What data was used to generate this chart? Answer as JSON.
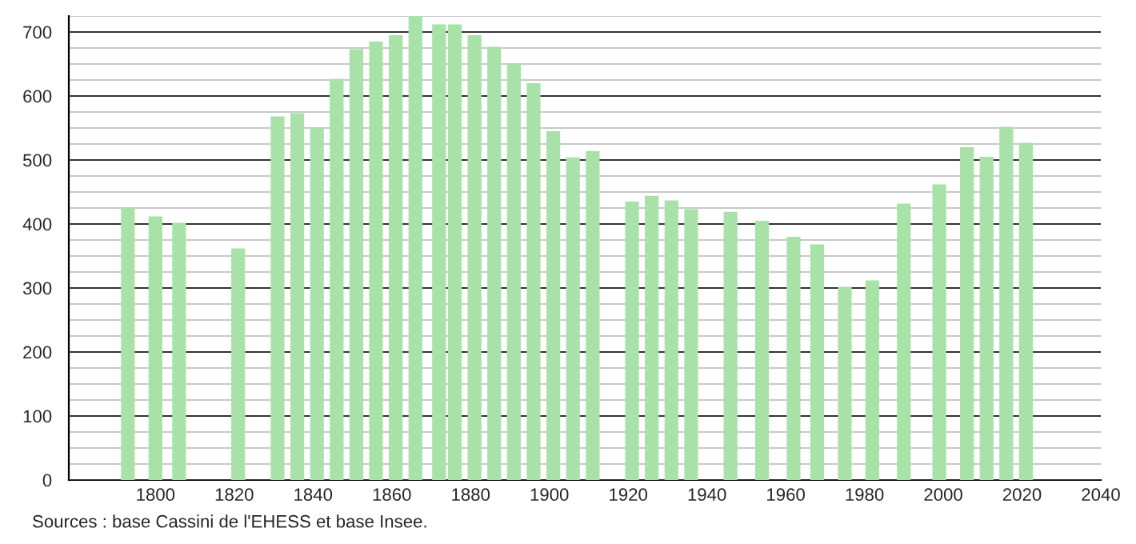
{
  "chart_data": {
    "type": "bar",
    "color": "#a8e2a8",
    "x": [
      1793,
      1800,
      1806,
      1821,
      1831,
      1836,
      1841,
      1846,
      1851,
      1856,
      1861,
      1866,
      1872,
      1876,
      1881,
      1886,
      1891,
      1896,
      1901,
      1906,
      1911,
      1921,
      1926,
      1931,
      1936,
      1946,
      1954,
      1962,
      1968,
      1975,
      1982,
      1990,
      1999,
      2006,
      2011,
      2016,
      2021
    ],
    "values": [
      425,
      412,
      402,
      362,
      568,
      573,
      550,
      627,
      673,
      685,
      695,
      725,
      712,
      712,
      695,
      677,
      650,
      620,
      545,
      504,
      514,
      435,
      444,
      437,
      423,
      419,
      405,
      380,
      368,
      302,
      312,
      432,
      462,
      520,
      505,
      552,
      527
    ],
    "xlim": [
      1778,
      2040
    ],
    "xticks": [
      1800,
      1820,
      1840,
      1860,
      1880,
      1900,
      1920,
      1940,
      1960,
      1980,
      2000,
      2020,
      2040
    ],
    "ylim": [
      0,
      725
    ],
    "yticks": [
      0,
      100,
      200,
      300,
      400,
      500,
      600,
      700
    ],
    "grid": "y",
    "legend": false,
    "annotations": [
      "Sources : base Cassini de l'EHESS et base Insee."
    ]
  }
}
